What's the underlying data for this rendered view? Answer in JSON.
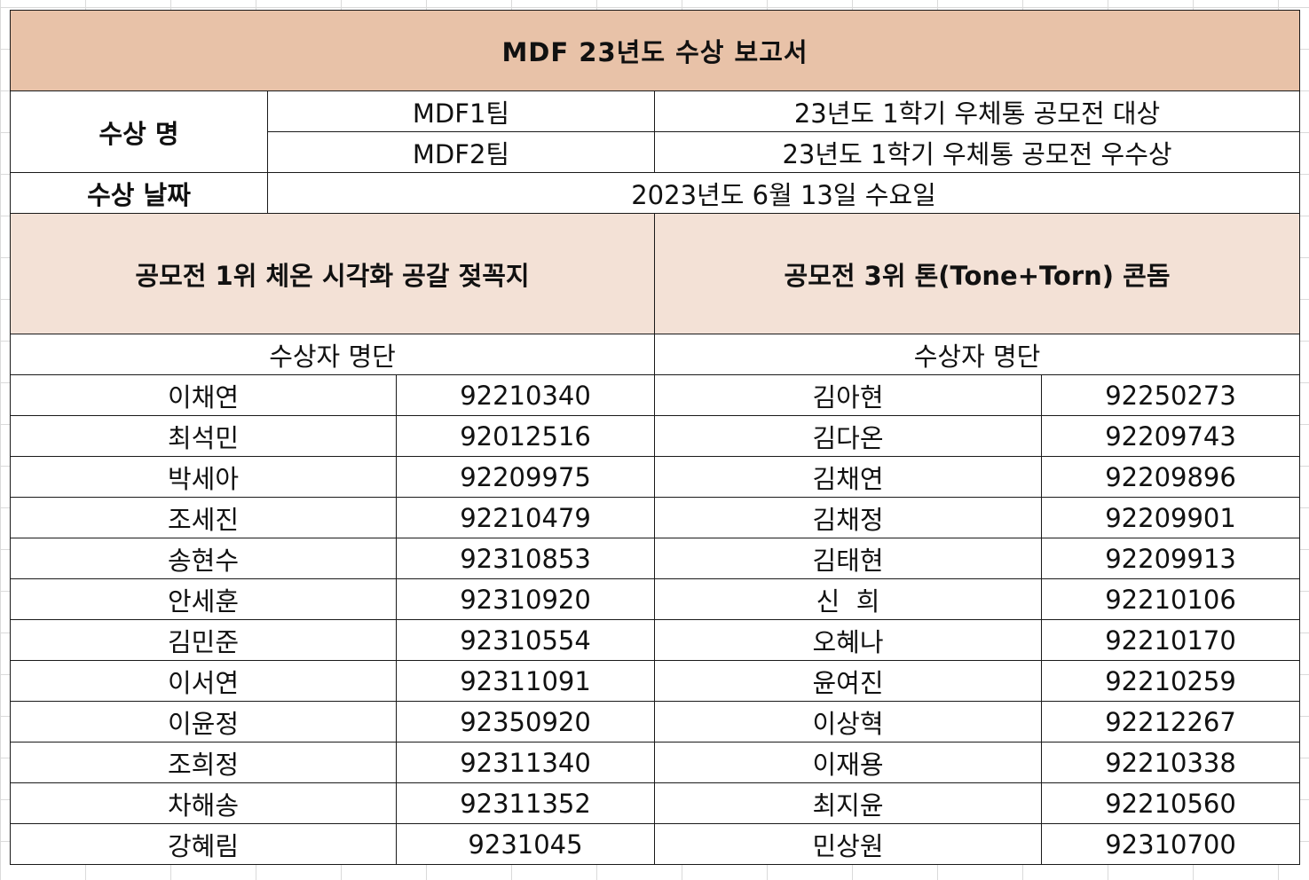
{
  "title": "MDF 23년도 수상 보고서",
  "award": {
    "label": "수상 명",
    "teams": [
      {
        "team": "MDF1팀",
        "award": "23년도 1학기 우체통 공모전 대상"
      },
      {
        "team": "MDF2팀",
        "award": "23년도 1학기 우체통 공모전 우수상"
      }
    ]
  },
  "date": {
    "label": "수상 날짜",
    "value": "2023년도 6월 13일 수요일"
  },
  "sections": {
    "left_title": "공모전 1위 체온 시각화 공갈 젖꼭지",
    "right_title": "공모전 3위 톤(Tone+Torn) 콘돔",
    "left_roster_label": "수상자 명단",
    "right_roster_label": "수상자 명단"
  },
  "rows": [
    {
      "left_name": "이채연",
      "left_id": "92210340",
      "right_name": "김아현",
      "right_id": "92250273"
    },
    {
      "left_name": "최석민",
      "left_id": "92012516",
      "right_name": "김다온",
      "right_id": "92209743"
    },
    {
      "left_name": "박세아",
      "left_id": "92209975",
      "right_name": "김채연",
      "right_id": "92209896"
    },
    {
      "left_name": "조세진",
      "left_id": "92210479",
      "right_name": "김채정",
      "right_id": "92209901"
    },
    {
      "left_name": "송현수",
      "left_id": "92310853",
      "right_name": "김태현",
      "right_id": "92209913"
    },
    {
      "left_name": "안세훈",
      "left_id": "92310920",
      "right_name": "신  희",
      "right_id": "92210106"
    },
    {
      "left_name": "김민준",
      "left_id": "92310554",
      "right_name": "오혜나",
      "right_id": "92210170"
    },
    {
      "left_name": "이서연",
      "left_id": "92311091",
      "right_name": "윤여진",
      "right_id": "92210259"
    },
    {
      "left_name": "이윤정",
      "left_id": "92350920",
      "right_name": "이상혁",
      "right_id": "92212267"
    },
    {
      "left_name": "조희정",
      "left_id": "92311340",
      "right_name": "이재용",
      "right_id": "92210338"
    },
    {
      "left_name": "차해송",
      "left_id": "92311352",
      "right_name": "최지윤",
      "right_id": "92210560"
    },
    {
      "left_name": "강혜림",
      "left_id": "9231045",
      "right_name": "민상원",
      "right_id": "92310700"
    }
  ],
  "colors": {
    "title_bg": "#e8c2a8",
    "section_bg": "#f3e1d6"
  }
}
